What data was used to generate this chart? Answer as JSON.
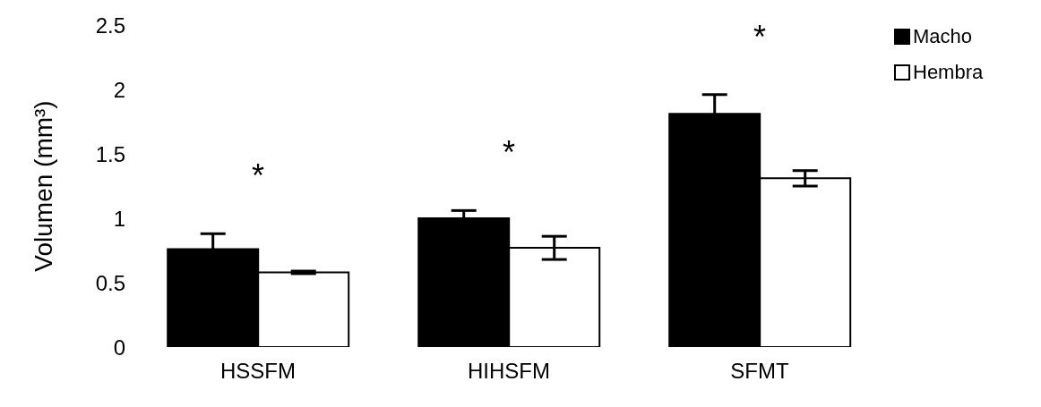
{
  "chart_data": {
    "type": "bar",
    "ylabel": "Volumen (mm³)",
    "categories": [
      "HSSFM",
      "HIHSFM",
      "SFMT"
    ],
    "series": [
      {
        "name": "Macho",
        "color": "#000000",
        "values": [
          0.76,
          1.0,
          1.81
        ],
        "errors": [
          0.12,
          0.06,
          0.15
        ]
      },
      {
        "name": "Hembra",
        "color": "#ffffff",
        "values": [
          0.58,
          0.77,
          1.31
        ],
        "errors": [
          0.01,
          0.09,
          0.06
        ]
      }
    ],
    "ylim": [
      0,
      2.5
    ],
    "yticks": [
      0,
      0.5,
      1,
      1.5,
      2,
      2.5
    ],
    "grid": false,
    "legend": "top right",
    "annotations": [
      "*",
      "*",
      "*"
    ]
  }
}
